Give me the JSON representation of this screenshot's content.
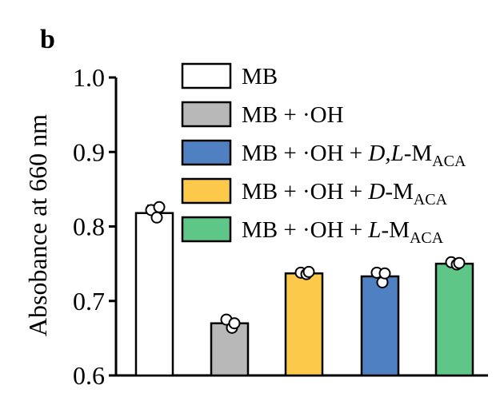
{
  "panel_label": "b",
  "chart_data": {
    "type": "bar",
    "title": "",
    "xlabel": "",
    "ylabel": "Absobance at 660 nm",
    "ylim": [
      0.6,
      1.0
    ],
    "yticks": [
      "0.6",
      "0.7",
      "0.8",
      "0.9",
      "1.0"
    ],
    "bars": [
      {
        "series": "MB",
        "value": 0.818,
        "err": 0.01,
        "points": [
          0.822,
          0.812,
          0.826
        ]
      },
      {
        "series": "MB + ·OH",
        "value": 0.67,
        "err": 0.006,
        "points": [
          0.675,
          0.664,
          0.67
        ]
      },
      {
        "series": "MB + ·OH + D-MACA",
        "value": 0.737,
        "err": 0.003,
        "points": [
          0.738,
          0.736,
          0.739
        ]
      },
      {
        "series": "MB + ·OH + D,L-MACA",
        "value": 0.733,
        "err": 0.008,
        "points": [
          0.738,
          0.725,
          0.737
        ]
      },
      {
        "series": "MB + ·OH + L-MACA",
        "value": 0.75,
        "err": 0.003,
        "points": [
          0.752,
          0.749,
          0.751
        ]
      }
    ],
    "legend": {
      "placement": "top-right",
      "entries": [
        {
          "name": "MB",
          "color": "#ffffff",
          "parts": [
            {
              "t": "MB"
            }
          ]
        },
        {
          "name": "MB + ·OH",
          "color": "#b8b8b8",
          "parts": [
            {
              "t": "MB + ·OH"
            }
          ]
        },
        {
          "name": "MB + ·OH + D,L-MACA",
          "color": "#4f80c2",
          "parts": [
            {
              "t": "MB + ·OH + "
            },
            {
              "t": "D,L",
              "i": true
            },
            {
              "t": "-M"
            },
            {
              "t": "ACA",
              "sub": true
            }
          ]
        },
        {
          "name": "MB + ·OH + D-MACA",
          "color": "#fcc94b",
          "parts": [
            {
              "t": "MB + ·OH + "
            },
            {
              "t": "D",
              "i": true
            },
            {
              "t": "-M"
            },
            {
              "t": "ACA",
              "sub": true
            }
          ]
        },
        {
          "name": "MB + ·OH + L-MACA",
          "color": "#5ec686",
          "parts": [
            {
              "t": "MB + ·OH + "
            },
            {
              "t": "L",
              "i": true
            },
            {
              "t": "-M"
            },
            {
              "t": "ACA",
              "sub": true
            }
          ]
        }
      ]
    },
    "colors": {
      "MB": "#ffffff",
      "MB + ·OH": "#b8b8b8",
      "MB + ·OH + D,L-MACA": "#4f80c2",
      "MB + ·OH + D-MACA": "#fcc94b",
      "MB + ·OH + L-MACA": "#5ec686"
    }
  }
}
